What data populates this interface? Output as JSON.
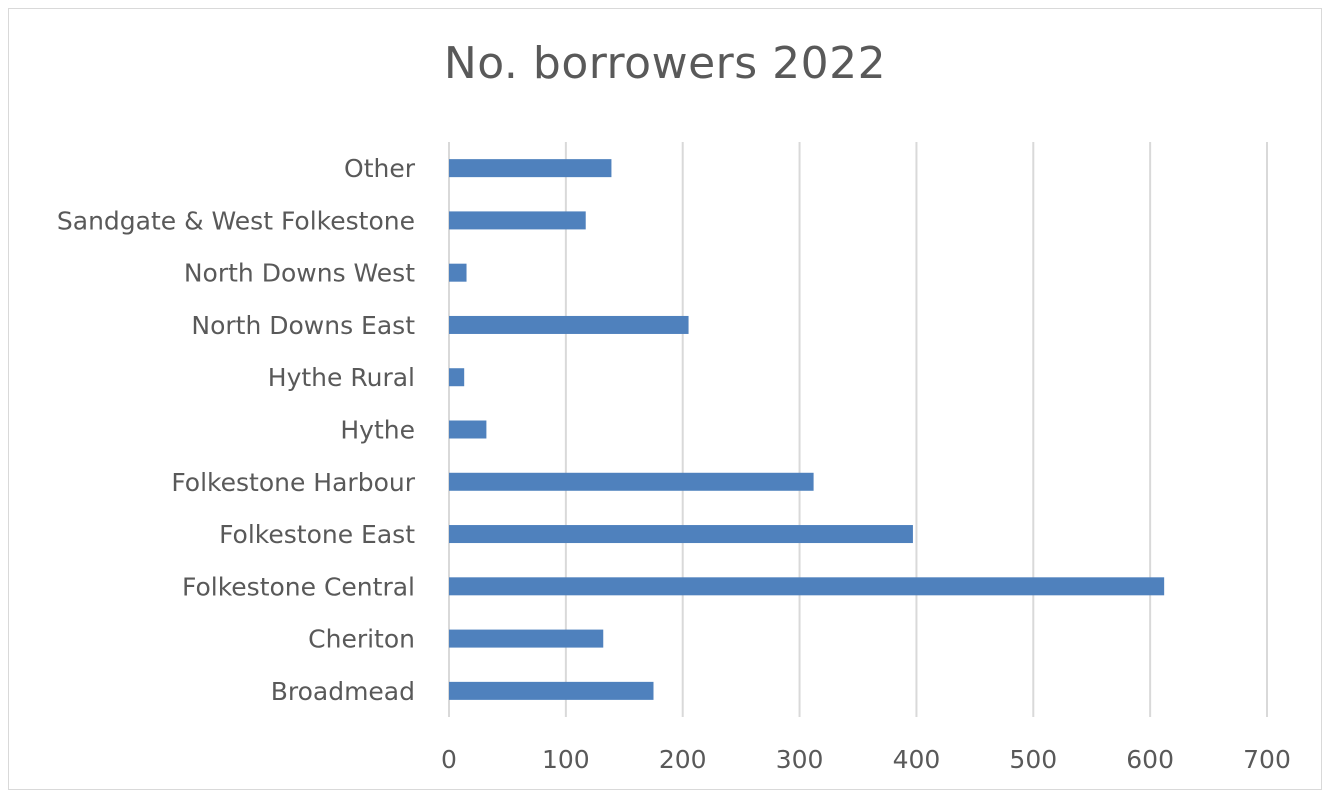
{
  "chart_data": {
    "type": "bar",
    "orientation": "horizontal",
    "title": "No. borrowers 2022",
    "categories": [
      "Broadmead",
      "Cheriton",
      "Folkestone Central",
      "Folkestone East",
      "Folkestone Harbour",
      "Hythe",
      "Hythe Rural",
      "North Downs East",
      "North Downs West",
      "Sandgate & West Folkestone",
      "Other"
    ],
    "values": [
      175,
      132,
      612,
      397,
      312,
      32,
      13,
      205,
      15,
      117,
      139
    ],
    "xlim": [
      0,
      700
    ],
    "xticks": [
      "0",
      "100",
      "200",
      "300",
      "400",
      "500",
      "600",
      "700"
    ],
    "grid": true,
    "legend": "none",
    "bar_color": "#4f81bd",
    "grid_color": "#d9d9d9"
  }
}
